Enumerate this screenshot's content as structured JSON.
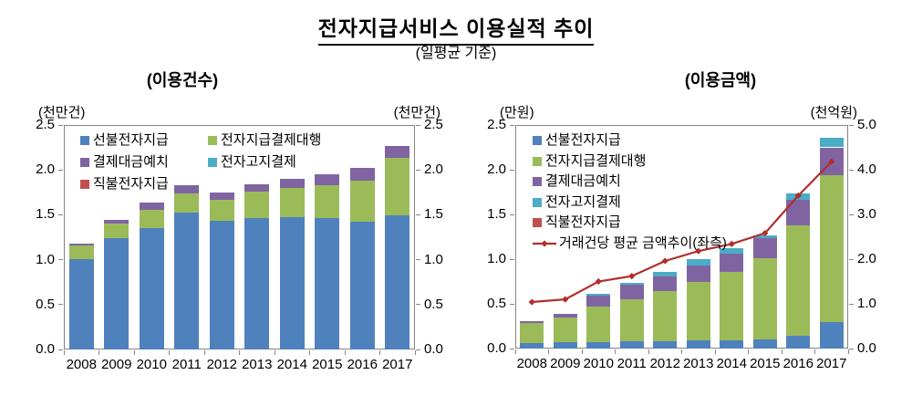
{
  "page": {
    "title": "전자지급서비스 이용실적 추이",
    "subtitle": "(일평균 기준)"
  },
  "chart_data": [
    {
      "type": "bar",
      "stacked": true,
      "title": "(이용건수)",
      "unit_left": "(천만건)",
      "unit_right": "(천만건)",
      "categories": [
        "2008",
        "2009",
        "2010",
        "2011",
        "2012",
        "2013",
        "2014",
        "2015",
        "2016",
        "2017"
      ],
      "ylim": [
        0,
        2.5
      ],
      "ytick_step": 0.5,
      "grid": false,
      "legend_position": "top-left-inside",
      "series": [
        {
          "name": "선불전자지급",
          "color": "#4F81BD",
          "values": [
            1.01,
            1.24,
            1.35,
            1.52,
            1.43,
            1.46,
            1.47,
            1.46,
            1.42,
            1.49
          ]
        },
        {
          "name": "전자지급결제대행",
          "color": "#9BBB59",
          "values": [
            0.15,
            0.16,
            0.2,
            0.22,
            0.24,
            0.3,
            0.33,
            0.37,
            0.46,
            0.64
          ]
        },
        {
          "name": "결제대금예치",
          "color": "#8064A2",
          "values": [
            0.02,
            0.04,
            0.09,
            0.09,
            0.08,
            0.08,
            0.1,
            0.12,
            0.14,
            0.14
          ]
        },
        {
          "name": "전자고지결제",
          "color": "#4BACC6",
          "values": [
            0,
            0,
            0,
            0,
            0,
            0,
            0,
            0,
            0,
            0
          ]
        },
        {
          "name": "직불전자지급",
          "color": "#C0504D",
          "values": [
            0,
            0,
            0,
            0,
            0,
            0,
            0,
            0,
            0,
            0
          ]
        }
      ],
      "legend_columns": [
        [
          "선불전자지급",
          "결제대금예치",
          "직불전자지급"
        ],
        [
          "전자지급결제대행",
          "전자고지결제"
        ]
      ]
    },
    {
      "type": "combo",
      "stacked": true,
      "title": "(이용금액)",
      "unit_left": "(만원)",
      "unit_right": "(천억원)",
      "categories": [
        "2008",
        "2009",
        "2010",
        "2011",
        "2012",
        "2013",
        "2014",
        "2015",
        "2016",
        "2017"
      ],
      "ylim_left": [
        0,
        2.5
      ],
      "ylim_right": [
        0,
        5.0
      ],
      "ytick_step_left": 0.5,
      "ytick_step_right": 1.0,
      "bar_axis": "right",
      "grid": false,
      "legend_position": "top-left-inside",
      "series": [
        {
          "name": "선불전자지급",
          "color": "#4F81BD",
          "values": [
            0.12,
            0.14,
            0.14,
            0.16,
            0.16,
            0.18,
            0.19,
            0.2,
            0.29,
            0.6
          ]
        },
        {
          "name": "전자지급결제대행",
          "color": "#9BBB59",
          "values": [
            0.46,
            0.56,
            0.8,
            0.94,
            1.12,
            1.3,
            1.52,
            1.82,
            2.46,
            3.28
          ]
        },
        {
          "name": "결제대금예치",
          "color": "#8064A2",
          "values": [
            0.04,
            0.08,
            0.24,
            0.32,
            0.34,
            0.38,
            0.42,
            0.44,
            0.57,
            0.62
          ]
        },
        {
          "name": "전자고지결제",
          "color": "#4BACC6",
          "values": [
            0.0,
            0.0,
            0.04,
            0.04,
            0.1,
            0.14,
            0.11,
            0.07,
            0.14,
            0.22
          ]
        },
        {
          "name": "직불전자지급",
          "color": "#C0504D",
          "values": [
            0,
            0,
            0,
            0,
            0,
            0,
            0,
            0,
            0,
            0
          ]
        }
      ],
      "line": {
        "name": "거래건당 평균 금액추이(좌측)",
        "color": "#B02E2B",
        "axis": "left",
        "values": [
          0.52,
          0.55,
          0.75,
          0.81,
          0.98,
          1.09,
          1.17,
          1.29,
          1.71,
          2.09
        ]
      },
      "legend_order": [
        "선불전자지급",
        "전자지급결제대행",
        "결제대금예치",
        "전자고지결제",
        "직불전자지급",
        "거래건당 평균 금액추이(좌측)"
      ]
    }
  ]
}
